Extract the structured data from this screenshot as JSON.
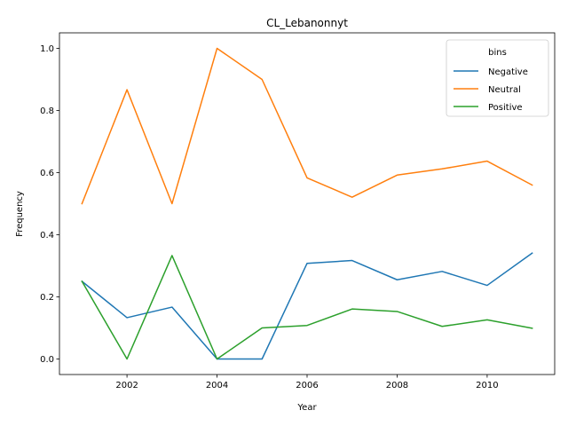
{
  "chart_data": {
    "type": "line",
    "title": "CL_Lebanonnyt",
    "xlabel": "Year",
    "ylabel": "Frequency",
    "x": [
      2001,
      2002,
      2003,
      2004,
      2005,
      2006,
      2007,
      2008,
      2009,
      2010,
      2011
    ],
    "x_ticks": [
      2002,
      2004,
      2006,
      2008,
      2010
    ],
    "y_ticks": [
      0.0,
      0.2,
      0.4,
      0.6,
      0.8,
      1.0
    ],
    "y_tick_labels": [
      "0.0",
      "0.2",
      "0.4",
      "0.6",
      "0.8",
      "1.0"
    ],
    "xlim": [
      2000.5,
      2011.5
    ],
    "ylim": [
      -0.05,
      1.05
    ],
    "grid": false,
    "legend": {
      "title": "bins",
      "placement": "top-right"
    },
    "series": [
      {
        "name": "Negative",
        "color": "#1f77b4",
        "values": [
          0.25,
          0.133,
          0.167,
          0.0,
          0.0,
          0.308,
          0.317,
          0.255,
          0.282,
          0.237,
          0.341
        ]
      },
      {
        "name": "Neutral",
        "color": "#ff7f0e",
        "values": [
          0.5,
          0.867,
          0.5,
          1.0,
          0.9,
          0.583,
          0.521,
          0.592,
          0.612,
          0.637,
          0.56
        ]
      },
      {
        "name": "Positive",
        "color": "#2ca02c",
        "values": [
          0.25,
          0.0,
          0.333,
          0.0,
          0.1,
          0.108,
          0.161,
          0.153,
          0.105,
          0.126,
          0.099
        ]
      }
    ]
  }
}
